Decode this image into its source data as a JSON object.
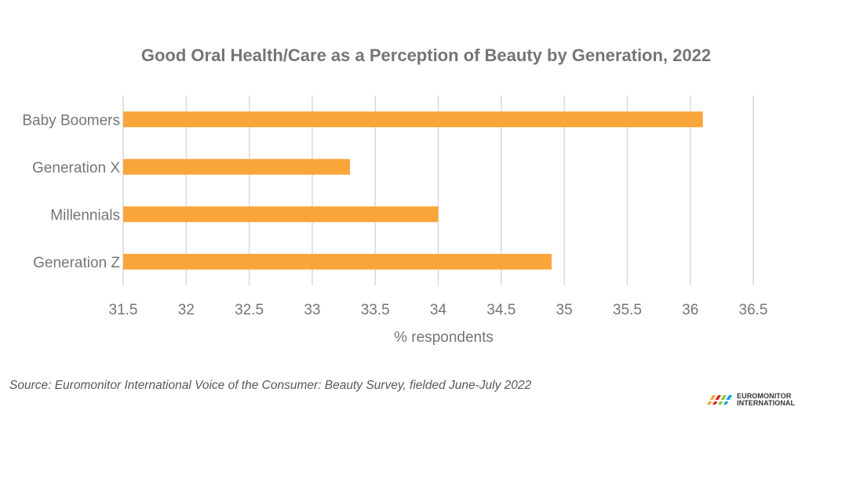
{
  "chart_data": {
    "type": "bar",
    "orientation": "horizontal",
    "title": "Good Oral Health/Care as a Perception of Beauty by Generation, 2022",
    "xlabel": "% respondents",
    "ylabel": "",
    "categories": [
      "Baby Boomers",
      "Generation X",
      "Millennials",
      "Generation Z"
    ],
    "values": [
      36.1,
      33.3,
      34.0,
      34.9
    ],
    "xlim": [
      31.5,
      36.5
    ],
    "xticks": [
      "31.5",
      "32",
      "32.5",
      "33",
      "33.5",
      "34",
      "34.5",
      "35",
      "35.5",
      "36",
      "36.5"
    ],
    "grid": "vertical",
    "legend": "none",
    "bar_color": "#F9A53A",
    "gridline_color": "#D9D9D9"
  },
  "source": "Source: Euromonitor International Voice of the Consumer: Beauty Survey, fielded June-July 2022",
  "logo": {
    "line1": "EUROMONITOR",
    "line2": "INTERNATIONAL"
  }
}
